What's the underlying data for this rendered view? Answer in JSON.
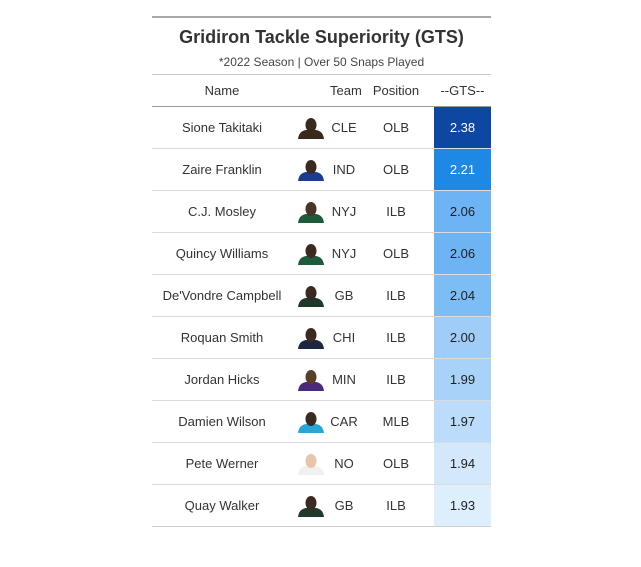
{
  "title": "Gridiron Tackle Superiority (GTS)",
  "subtitle": "*2022 Season | Over 50 Snaps Played",
  "columns": {
    "name": "Name",
    "team": "Team",
    "position": "Position",
    "gts": "--GTS--"
  },
  "rows": [
    {
      "name": "Sione Takitaki",
      "team": "CLE",
      "position": "OLB",
      "gts": "2.38",
      "gts_value": 2.38,
      "cell_color": "#0d47a1",
      "text_color": "#ffffff",
      "jersey_color": "#3a2a1e",
      "skin": "#3b2a20"
    },
    {
      "name": "Zaire Franklin",
      "team": "IND",
      "position": "OLB",
      "gts": "2.21",
      "gts_value": 2.21,
      "cell_color": "#1e88e5",
      "text_color": "#ffffff",
      "jersey_color": "#1a3d8f",
      "skin": "#3b2a20"
    },
    {
      "name": "C.J. Mosley",
      "team": "NYJ",
      "position": "ILB",
      "gts": "2.06",
      "gts_value": 2.06,
      "cell_color": "#6cb4f4",
      "text_color": "#1f1f1f",
      "jersey_color": "#1d5b3a",
      "skin": "#4a3426"
    },
    {
      "name": "Quincy Williams",
      "team": "NYJ",
      "position": "OLB",
      "gts": "2.06",
      "gts_value": 2.06,
      "cell_color": "#6cb4f4",
      "text_color": "#1f1f1f",
      "jersey_color": "#1d5b3a",
      "skin": "#3b2a20"
    },
    {
      "name": "De'Vondre Campbell",
      "team": "GB",
      "position": "ILB",
      "gts": "2.04",
      "gts_value": 2.04,
      "cell_color": "#7dbdf6",
      "text_color": "#1f1f1f",
      "jersey_color": "#21392a",
      "skin": "#3b2a20"
    },
    {
      "name": "Roquan Smith",
      "team": "CHI",
      "position": "ILB",
      "gts": "2.00",
      "gts_value": 2.0,
      "cell_color": "#9fcdf8",
      "text_color": "#1f1f1f",
      "jersey_color": "#1d2740",
      "skin": "#3b2a20"
    },
    {
      "name": "Jordan Hicks",
      "team": "MIN",
      "position": "ILB",
      "gts": "1.99",
      "gts_value": 1.99,
      "cell_color": "#a9d2f8",
      "text_color": "#1f1f1f",
      "jersey_color": "#4b2a7a",
      "skin": "#5a3e2c"
    },
    {
      "name": "Damien Wilson",
      "team": "CAR",
      "position": "MLB",
      "gts": "1.97",
      "gts_value": 1.97,
      "cell_color": "#bbdcfa",
      "text_color": "#1f1f1f",
      "jersey_color": "#2aa6d6",
      "skin": "#3b2a20"
    },
    {
      "name": "Pete Werner",
      "team": "NO",
      "position": "OLB",
      "gts": "1.94",
      "gts_value": 1.94,
      "cell_color": "#d3e8fb",
      "text_color": "#1f1f1f",
      "jersey_color": "#f0f0f0",
      "skin": "#e8c4a8"
    },
    {
      "name": "Quay Walker",
      "team": "GB",
      "position": "ILB",
      "gts": "1.93",
      "gts_value": 1.93,
      "cell_color": "#ddeefc",
      "text_color": "#1f1f1f",
      "jersey_color": "#1f3a28",
      "skin": "#3b2a20"
    }
  ]
}
